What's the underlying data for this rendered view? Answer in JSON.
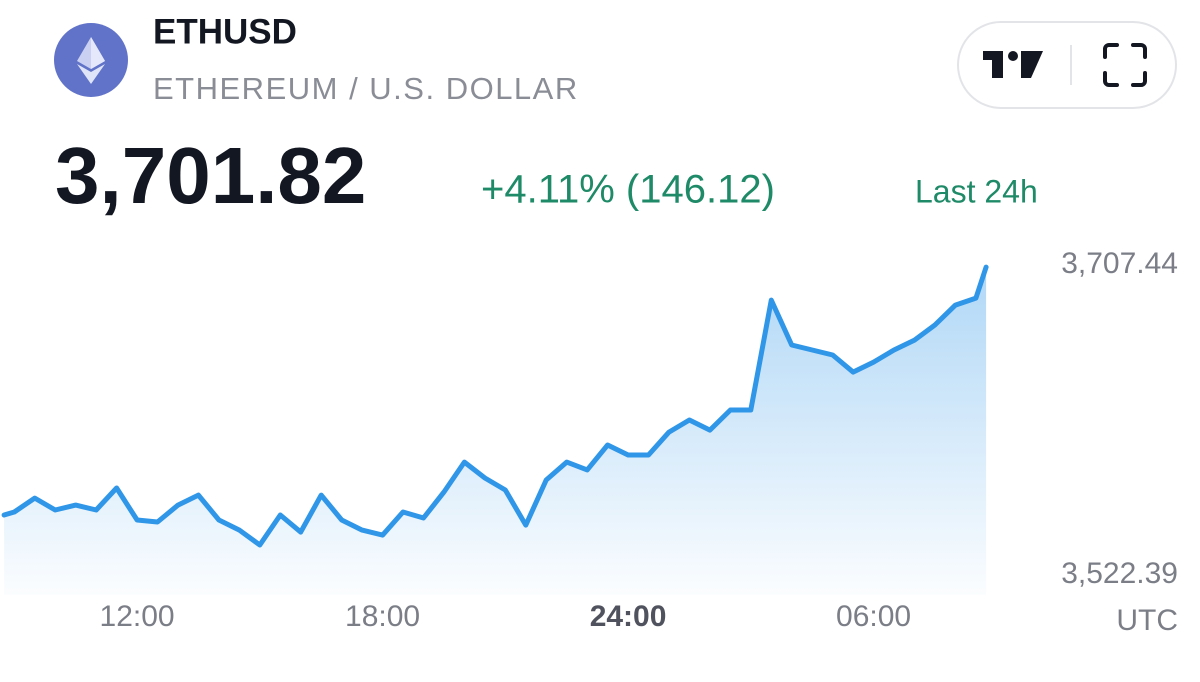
{
  "chart_data": {
    "type": "line",
    "title": "ETHUSD",
    "subtitle": "ETHEREUM / U.S. DOLLAR",
    "price": "3,701.82",
    "change": "+4.11% (146.12)",
    "period": "Last 24h",
    "xlabel": "UTC",
    "x": [
      8.75,
      9.0,
      9.5,
      10.0,
      10.5,
      11.0,
      11.5,
      12.0,
      12.5,
      13.0,
      13.5,
      14.0,
      14.5,
      15.0,
      15.5,
      16.0,
      16.5,
      17.0,
      17.5,
      18.0,
      18.5,
      19.0,
      19.5,
      20.0,
      20.5,
      21.0,
      21.5,
      22.0,
      22.5,
      23.0,
      23.5,
      24.0,
      24.5,
      25.0,
      25.5,
      26.0,
      26.5,
      27.0,
      27.5,
      28.0,
      28.5,
      29.0,
      29.5,
      30.0,
      30.5,
      31.0,
      31.5,
      32.0,
      32.5,
      32.75
    ],
    "series": [
      {
        "name": "ETHUSD",
        "color": "#2f96e8",
        "values": [
          3558.2,
          3560.0,
          3568.3,
          3561.2,
          3564.1,
          3561.2,
          3574.3,
          3555.2,
          3554.0,
          3564.1,
          3570.1,
          3555.2,
          3549.2,
          3540.3,
          3558.2,
          3548.0,
          3570.1,
          3555.2,
          3549.2,
          3546.2,
          3560.0,
          3556.4,
          3571.9,
          3589.8,
          3580.3,
          3573.1,
          3552.2,
          3579.1,
          3589.8,
          3585.1,
          3600.0,
          3594.0,
          3594.0,
          3607.7,
          3614.9,
          3608.9,
          3620.9,
          3620.9,
          3686.5,
          3659.7,
          3656.7,
          3653.7,
          3643.5,
          3649.5,
          3656.7,
          3662.6,
          3671.6,
          3683.5,
          3687.7,
          3706.2
        ]
      }
    ],
    "xlim": [
      8.65,
      33.09
    ],
    "xticks": [
      {
        "value": 12,
        "label": "12:00"
      },
      {
        "value": 18,
        "label": "18:00"
      },
      {
        "value": 24,
        "label": "24:00"
      },
      {
        "value": 30,
        "label": "06:00"
      }
    ],
    "ylim": [
      3522.39,
      3707.44
    ],
    "yticks": [
      {
        "value": 3707.44,
        "label": "3,707.44"
      },
      {
        "value": 3522.39,
        "label": "3,522.39"
      }
    ],
    "grid": false
  }
}
